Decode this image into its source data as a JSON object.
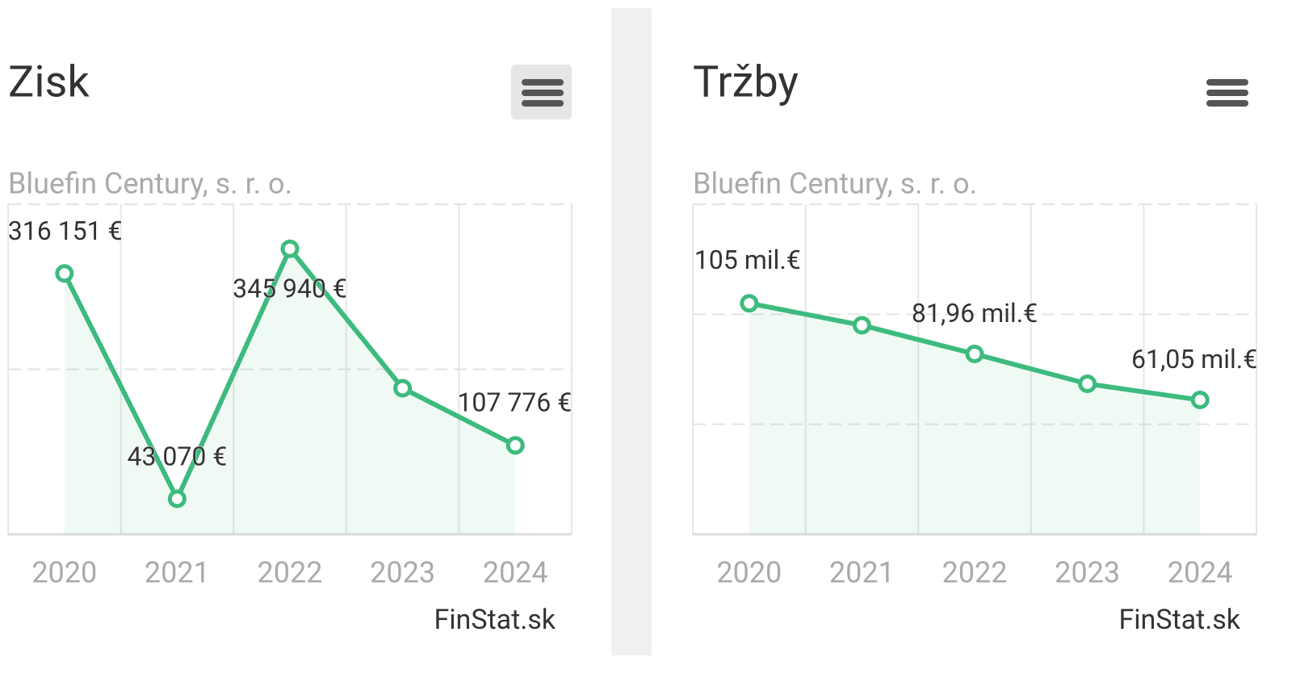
{
  "chart_data": [
    {
      "type": "line",
      "title": "Zisk",
      "subtitle": "Bluefin Century, s. r. o.",
      "credit": "FinStat.sk",
      "categories": [
        "2020",
        "2021",
        "2022",
        "2023",
        "2024"
      ],
      "values": [
        316151,
        43070,
        345940,
        177000,
        107776
      ],
      "value_labels": [
        "316 151 €",
        "43 070 €",
        "345 940 €",
        null,
        "107 776 €"
      ],
      "color": "#3dbb7e",
      "ylim": [
        0,
        400000
      ],
      "yticks": [
        0,
        200000,
        400000
      ],
      "grid": true
    },
    {
      "type": "line",
      "title": "Tržby",
      "subtitle": "Bluefin Century, s. r. o.",
      "credit": "FinStat.sk",
      "categories": [
        "2020",
        "2021",
        "2022",
        "2023",
        "2024"
      ],
      "values": [
        105,
        95,
        81.96,
        68.4,
        61.05
      ],
      "value_labels": [
        "105 mil.€",
        null,
        "81,96 mil.€",
        null,
        "61,05 mil.€"
      ],
      "color": "#3dbb7e",
      "ylim": [
        0,
        150
      ],
      "yticks": [
        0,
        50,
        100,
        150
      ],
      "grid": true
    }
  ]
}
